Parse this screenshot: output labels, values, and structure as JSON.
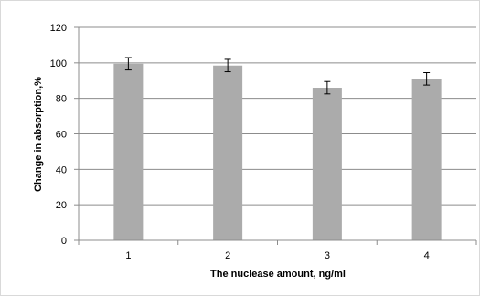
{
  "chart_data": {
    "type": "bar",
    "categories": [
      "1",
      "2",
      "3",
      "4"
    ],
    "values": [
      99.5,
      98.5,
      86,
      91
    ],
    "error": [
      3.5,
      3.5,
      3.5,
      3.5
    ],
    "title": "",
    "xlabel": "The nuclease amount, ng/ml",
    "ylabel": "Change in absorption,%",
    "ylim": [
      0,
      120
    ],
    "yticks": [
      "0",
      "20",
      "40",
      "60",
      "80",
      "100",
      "120"
    ],
    "grid": true,
    "legend": "none",
    "colors": {
      "bar": "#ababab",
      "grid": "#8c8c8c",
      "axis": "#8c8c8c",
      "error_bar": "#000000"
    }
  }
}
